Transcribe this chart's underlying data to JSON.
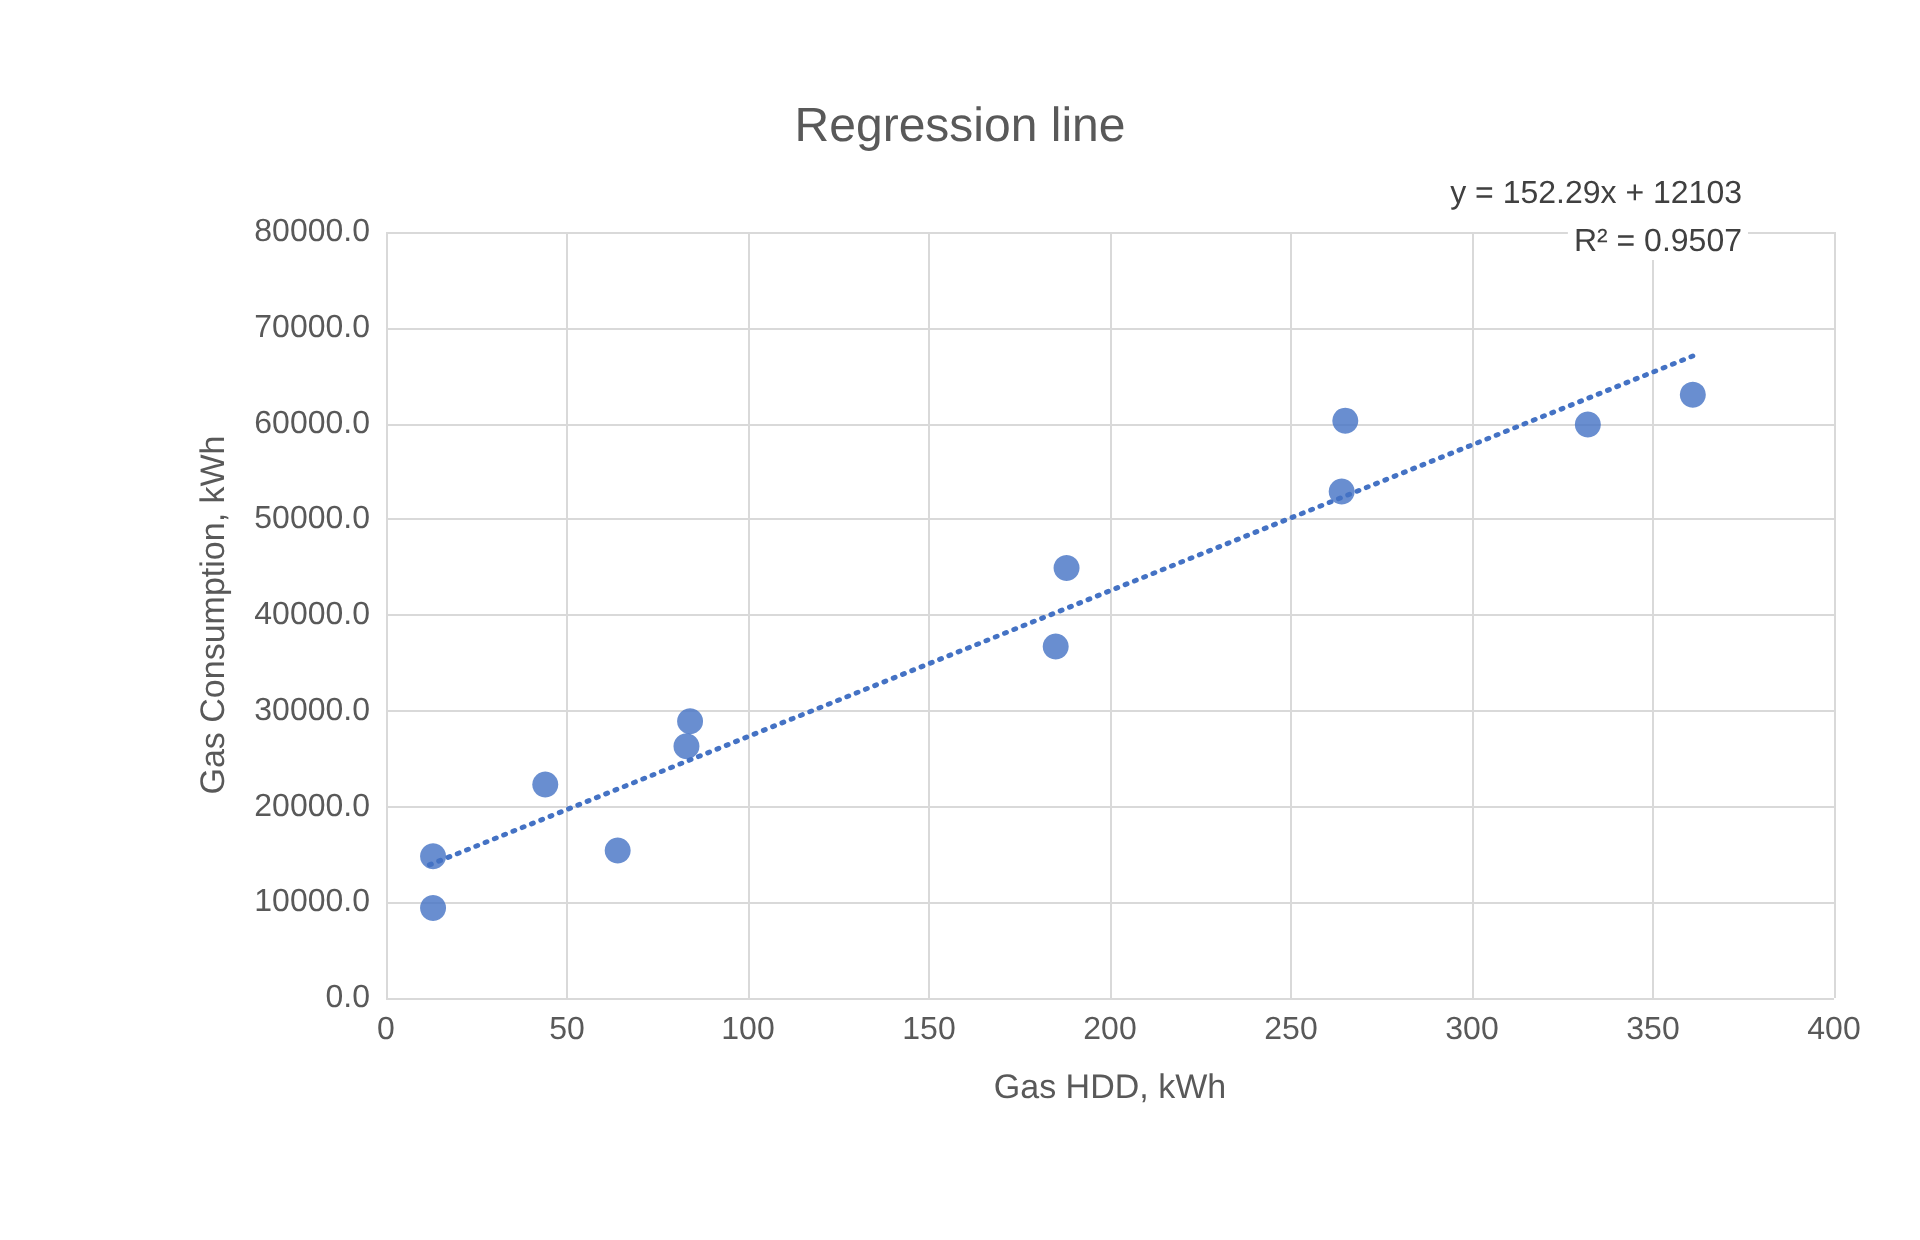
{
  "chart_data": {
    "type": "scatter",
    "title": "Regression line",
    "xlabel": "Gas HDD, kWh",
    "ylabel": "Gas Consumption, kWh",
    "annotations": [
      "y = 152.29x + 12103",
      "R² = 0.9507"
    ],
    "xlim": [
      0,
      400
    ],
    "xticks": [
      0,
      50,
      100,
      150,
      200,
      250,
      300,
      350,
      400
    ],
    "ylim": [
      0,
      80000
    ],
    "yticks": [
      {
        "value": 0,
        "label": "0.0"
      },
      {
        "value": 10000,
        "label": "10000.0"
      },
      {
        "value": 20000,
        "label": "20000.0"
      },
      {
        "value": 30000,
        "label": "30000.0"
      },
      {
        "value": 40000,
        "label": "40000.0"
      },
      {
        "value": 50000,
        "label": "50000.0"
      },
      {
        "value": 60000,
        "label": "60000.0"
      },
      {
        "value": 70000,
        "label": "70000.0"
      },
      {
        "value": 80000,
        "label": "80000.0"
      }
    ],
    "grid": true,
    "marker": "circle",
    "series": [
      {
        "color": "#4472c4",
        "x": [
          13,
          13,
          44,
          64,
          83,
          84,
          185,
          188,
          264,
          265,
          332,
          361
        ],
        "values": [
          9400,
          14800,
          22300,
          15400,
          26300,
          28900,
          36700,
          44900,
          52900,
          60300,
          59900,
          63000
        ]
      },
      {
        "type": "line",
        "color": "#4472c4",
        "line_style": "dotted",
        "marker": "none",
        "x": [
          12,
          362
        ],
        "values": [
          13900,
          67200
        ]
      }
    ]
  }
}
